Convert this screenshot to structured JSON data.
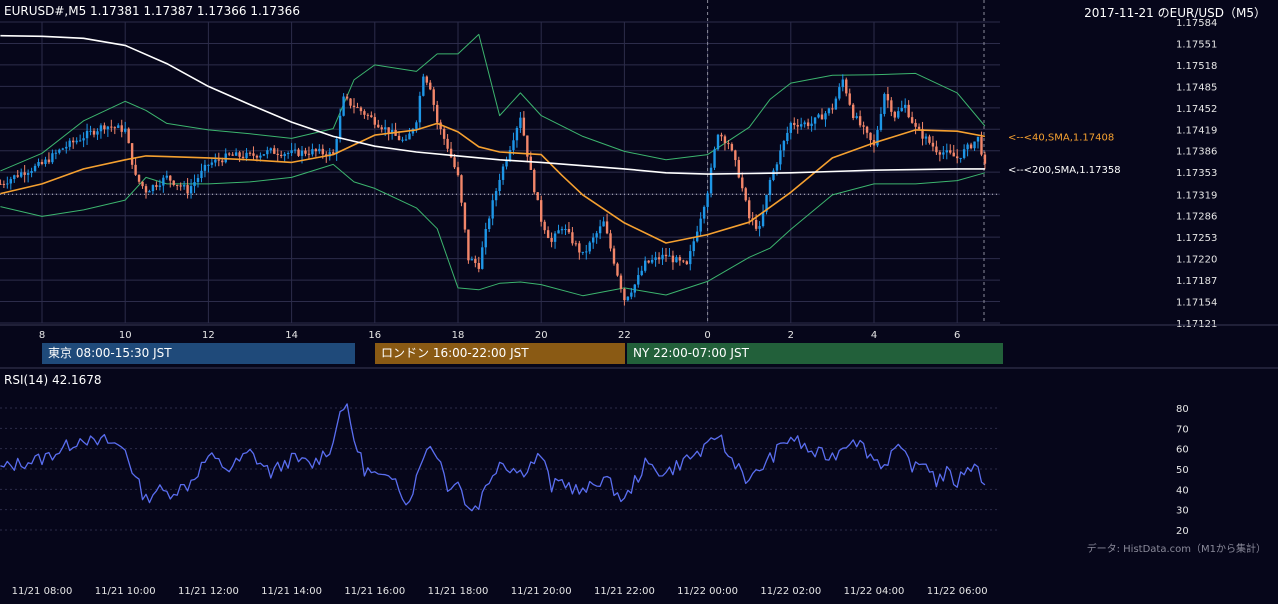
{
  "header": {
    "left": "EURUSD#,M5 1.17381 1.17387 1.17366 1.17366",
    "right": "2017-11-21 のEUR/USD（M5）"
  },
  "colors": {
    "background": "#06061a",
    "grid": "#2c2c4a",
    "bull": "#1e96e6",
    "bear": "#f2866a",
    "sma40": "#f5a030",
    "sma200": "#ffffff",
    "bollinger": "#3cb46e",
    "rsi": "#5a6ef0",
    "tokyo": "#1f4a7a",
    "london": "#8a5a14",
    "ny": "#22603a"
  },
  "sessions": [
    {
      "label": "東京 08:00-15:30 JST"
    },
    {
      "label": "ロンドン 16:00-22:00 JST"
    },
    {
      "label": "NY 22:00-07:00 JST"
    }
  ],
  "annotations": {
    "sma40": "<--<40,SMA,1.17408",
    "sma200": "<--<200,SMA,1.17358"
  },
  "rsi": {
    "label": "RSI(14) 42.1678"
  },
  "credit": "データ: HistData.com（M1から集計）",
  "chart_data": [
    {
      "type": "candlestick",
      "title": "2017-11-21 のEUR/USD（M5）",
      "ylim": [
        1.17121,
        1.17584
      ],
      "y_ticks": [
        "1.17584",
        "1.17551",
        "1.17518",
        "1.17485",
        "1.17452",
        "1.17419",
        "1.17386",
        "1.17353",
        "1.17319",
        "1.17286",
        "1.17253",
        "1.17220",
        "1.17187",
        "1.17154",
        "1.17121"
      ],
      "x_ticks": [
        "8",
        "10",
        "12",
        "14",
        "16",
        "18",
        "20",
        "22",
        "0",
        "2",
        "4",
        "6"
      ],
      "reference_level": 1.17319,
      "series": [
        {
          "name": "SMA 40",
          "x": [
            "07:00",
            "08:00",
            "09:00",
            "10:00",
            "10:30",
            "11:00",
            "12:00",
            "13:00",
            "14:00",
            "15:00",
            "16:00",
            "17:00",
            "17:30",
            "18:00",
            "18:30",
            "19:00",
            "20:00",
            "20:30",
            "21:00",
            "22:00",
            "23:00",
            "00:00",
            "01:00",
            "02:00",
            "03:00",
            "04:00",
            "05:00",
            "06:00",
            "06:40"
          ],
          "values": [
            1.1732,
            1.17335,
            1.17358,
            1.17372,
            1.17378,
            1.17377,
            1.17375,
            1.17372,
            1.17368,
            1.1738,
            1.1741,
            1.17418,
            1.17428,
            1.17415,
            1.17392,
            1.17384,
            1.1738,
            1.17348,
            1.17318,
            1.17275,
            1.17244,
            1.17257,
            1.17276,
            1.17322,
            1.17375,
            1.17398,
            1.17418,
            1.17416,
            1.17408
          ]
        },
        {
          "name": "SMA 200",
          "x": [
            "07:00",
            "08:00",
            "09:00",
            "10:00",
            "11:00",
            "12:00",
            "13:00",
            "14:00",
            "15:00",
            "16:00",
            "17:00",
            "18:00",
            "19:00",
            "20:00",
            "21:00",
            "22:00",
            "23:00",
            "00:00",
            "01:00",
            "02:00",
            "03:00",
            "04:00",
            "05:00",
            "06:00",
            "06:40"
          ],
          "values": [
            1.17563,
            1.17562,
            1.17559,
            1.17548,
            1.1752,
            1.17485,
            1.17457,
            1.1743,
            1.17408,
            1.17393,
            1.17384,
            1.17378,
            1.17372,
            1.17368,
            1.17363,
            1.17358,
            1.17352,
            1.1735,
            1.17351,
            1.17352,
            1.17354,
            1.17356,
            1.17357,
            1.17358,
            1.17358
          ]
        },
        {
          "name": "Bollinger upper",
          "x": [
            "07:00",
            "08:00",
            "09:00",
            "10:00",
            "10:30",
            "11:00",
            "12:00",
            "13:00",
            "14:00",
            "15:00",
            "15:30",
            "16:00",
            "17:00",
            "17:30",
            "18:00",
            "18:30",
            "19:00",
            "19:30",
            "20:00",
            "21:00",
            "22:00",
            "23:00",
            "00:00",
            "01:00",
            "01:30",
            "02:00",
            "03:00",
            "04:00",
            "05:00",
            "06:00",
            "06:40"
          ],
          "values": [
            1.17355,
            1.17382,
            1.17432,
            1.17462,
            1.17448,
            1.17428,
            1.17418,
            1.17412,
            1.17405,
            1.1742,
            1.17495,
            1.17518,
            1.17508,
            1.17535,
            1.17535,
            1.17565,
            1.1744,
            1.17475,
            1.1744,
            1.17408,
            1.17385,
            1.17372,
            1.1738,
            1.17422,
            1.17465,
            1.1749,
            1.17502,
            1.17503,
            1.17505,
            1.17475,
            1.17424
          ]
        },
        {
          "name": "Bollinger lower",
          "x": [
            "07:00",
            "08:00",
            "09:00",
            "10:00",
            "10:30",
            "11:00",
            "12:00",
            "13:00",
            "14:00",
            "15:00",
            "15:30",
            "16:00",
            "17:00",
            "17:30",
            "18:00",
            "18:30",
            "19:00",
            "19:30",
            "20:00",
            "21:00",
            "22:00",
            "23:00",
            "00:00",
            "01:00",
            "01:30",
            "02:00",
            "03:00",
            "04:00",
            "05:00",
            "06:00",
            "06:40"
          ],
          "values": [
            1.173,
            1.17285,
            1.17295,
            1.1731,
            1.17345,
            1.17335,
            1.17335,
            1.17338,
            1.17345,
            1.17365,
            1.17338,
            1.17328,
            1.17298,
            1.17266,
            1.17175,
            1.17172,
            1.17182,
            1.17184,
            1.1718,
            1.17163,
            1.17175,
            1.17164,
            1.17185,
            1.17222,
            1.17236,
            1.17265,
            1.17318,
            1.17335,
            1.17335,
            1.1734,
            1.17352
          ]
        },
        {
          "name": "Close",
          "x": [
            "07:00",
            "07:30",
            "08:00",
            "08:30",
            "09:00",
            "09:30",
            "10:00",
            "10:15",
            "10:30",
            "10:45",
            "11:00",
            "11:30",
            "12:00",
            "12:30",
            "13:00",
            "13:30",
            "14:00",
            "14:30",
            "15:00",
            "15:15",
            "15:30",
            "16:00",
            "16:15",
            "16:30",
            "16:45",
            "17:00",
            "17:10",
            "17:20",
            "17:30",
            "17:45",
            "18:00",
            "18:15",
            "18:30",
            "18:45",
            "19:00",
            "19:15",
            "19:30",
            "19:45",
            "20:00",
            "20:15",
            "20:30",
            "21:00",
            "21:30",
            "22:00",
            "22:15",
            "22:30",
            "23:00",
            "23:30",
            "00:00",
            "00:15",
            "00:30",
            "00:45",
            "01:00",
            "01:15",
            "01:30",
            "02:00",
            "02:30",
            "03:00",
            "03:15",
            "03:30",
            "04:00",
            "04:15",
            "04:30",
            "04:45",
            "05:00",
            "05:30",
            "06:00",
            "06:30",
            "06:40"
          ],
          "values": [
            1.17335,
            1.17352,
            1.17365,
            1.1739,
            1.17408,
            1.17425,
            1.17418,
            1.17345,
            1.17325,
            1.17335,
            1.17345,
            1.17325,
            1.17365,
            1.17378,
            1.17378,
            1.17385,
            1.17382,
            1.17385,
            1.1738,
            1.17465,
            1.17455,
            1.17432,
            1.1742,
            1.17408,
            1.17398,
            1.17435,
            1.17505,
            1.17485,
            1.1743,
            1.17392,
            1.17345,
            1.1722,
            1.1721,
            1.17285,
            1.17345,
            1.17392,
            1.1744,
            1.17352,
            1.1728,
            1.17245,
            1.1727,
            1.17225,
            1.17275,
            1.17158,
            1.1718,
            1.17212,
            1.17225,
            1.17208,
            1.17325,
            1.17415,
            1.17398,
            1.1735,
            1.17282,
            1.17265,
            1.1734,
            1.17428,
            1.17428,
            1.17452,
            1.17495,
            1.17442,
            1.17392,
            1.17475,
            1.1744,
            1.17455,
            1.1742,
            1.17388,
            1.17375,
            1.17405,
            1.17366
          ]
        }
      ]
    },
    {
      "type": "line",
      "title": "RSI(14) 42.1678",
      "ylim": [
        20,
        80
      ],
      "y_ticks": [
        "80",
        "70",
        "60",
        "50",
        "40",
        "30",
        "20"
      ],
      "x_ticks": [
        "11/21 08:00",
        "11/21 10:00",
        "11/21 12:00",
        "11/21 14:00",
        "11/21 16:00",
        "11/21 18:00",
        "11/21 20:00",
        "11/21 22:00",
        "11/22 00:00",
        "11/22 02:00",
        "11/22 04:00",
        "11/22 06:00"
      ],
      "series": [
        {
          "name": "RSI(14)",
          "x": [
            "07:00",
            "07:30",
            "08:00",
            "08:30",
            "09:00",
            "09:15",
            "09:30",
            "10:00",
            "10:15",
            "10:30",
            "10:45",
            "11:00",
            "11:30",
            "12:00",
            "12:30",
            "13:00",
            "13:30",
            "14:00",
            "14:30",
            "15:00",
            "15:10",
            "15:20",
            "15:30",
            "15:45",
            "16:00",
            "16:15",
            "16:30",
            "16:45",
            "17:00",
            "17:15",
            "17:30",
            "17:45",
            "18:00",
            "18:15",
            "18:30",
            "18:45",
            "19:00",
            "19:30",
            "20:00",
            "20:15",
            "20:30",
            "21:00",
            "21:30",
            "22:00",
            "22:15",
            "22:30",
            "23:00",
            "23:30",
            "00:00",
            "00:15",
            "00:30",
            "00:45",
            "01:00",
            "01:15",
            "01:30",
            "02:00",
            "02:30",
            "03:00",
            "03:15",
            "03:30",
            "04:00",
            "04:15",
            "04:30",
            "04:45",
            "05:00",
            "05:15",
            "05:30",
            "05:45",
            "06:00",
            "06:15",
            "06:30",
            "06:40"
          ],
          "values": [
            50,
            53,
            55,
            60,
            66,
            62,
            64,
            60,
            45,
            35,
            40,
            38,
            42,
            56,
            50,
            58,
            48,
            55,
            52,
            62,
            81,
            79,
            65,
            50,
            47,
            44,
            48,
            32,
            45,
            62,
            58,
            42,
            44,
            30,
            33,
            45,
            54,
            48,
            57,
            41,
            44,
            38,
            46,
            34,
            44,
            52,
            48,
            55,
            60,
            68,
            56,
            52,
            43,
            50,
            55,
            66,
            58,
            56,
            61,
            66,
            55,
            52,
            60,
            56,
            50,
            54,
            44,
            48,
            43,
            52,
            50,
            42.2
          ]
        }
      ]
    }
  ]
}
